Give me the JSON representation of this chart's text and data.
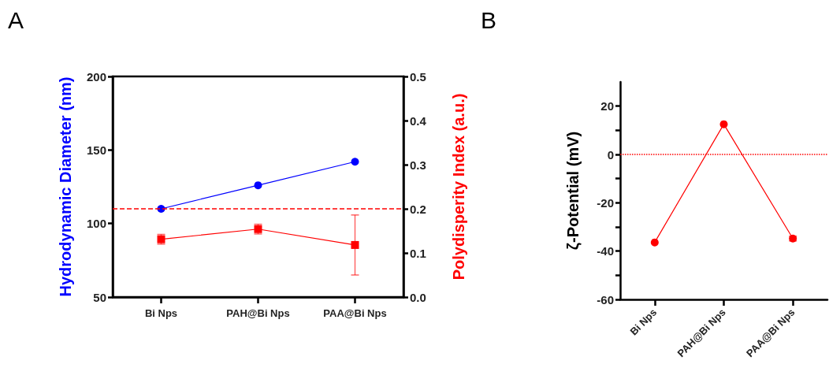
{
  "chart_data": [
    {
      "type": "line",
      "annotations": [
        "A"
      ],
      "ylabel": "Hydrodynamic Diameter (nm)",
      "y2label": "Polydisperity Index (a.u.)",
      "categories": [
        "Bi Nps",
        "PAH@Bi Nps",
        "PAA@Bi Nps"
      ],
      "series": [
        {
          "color": "#0000ff",
          "values": [
            110,
            126,
            142
          ],
          "marker": "circle"
        },
        {
          "color": "#ff0000",
          "values": [
            0.131,
            0.154,
            0.118
          ],
          "errors": [
            0.011,
            0.011,
            0.068
          ],
          "marker": "square",
          "axis": "y2"
        }
      ],
      "ylim": [
        50,
        200
      ],
      "yticks": [
        50,
        100,
        150,
        200
      ],
      "y2lim": [
        0,
        0.5
      ],
      "y2ticks": [
        {
          "value": 0,
          "label": "0.0"
        },
        0.1,
        0.2,
        0.3,
        0.4,
        0.5
      ],
      "ref_lines": [
        {
          "axis": "y2",
          "value": 0.2,
          "label": null,
          "color": "#ff0000",
          "line_style": "dashed"
        }
      ],
      "grid": false
    },
    {
      "type": "line",
      "annotations": [
        "B"
      ],
      "ylabel": "ζ-Potential (mV)",
      "categories": [
        "Bi Nps",
        "PAH@Bi Nps",
        "PAA@Bi Nps"
      ],
      "series": [
        {
          "color": "#ff0000",
          "values": [
            -36.4,
            12.5,
            -34.8
          ],
          "errors": [
            null,
            null,
            1
          ]
        }
      ],
      "marker": "circle",
      "ylim": [
        -60,
        30
      ],
      "yticks": [
        -60,
        {
          "value": -50,
          "label": null
        },
        -40,
        {
          "value": -30,
          "label": null
        },
        -20,
        {
          "value": -10,
          "label": null
        },
        0,
        {
          "value": 10,
          "label": null
        },
        20
      ],
      "ref_lines": [
        {
          "axis": "y",
          "value": 0,
          "label": null,
          "color": "#ff0000",
          "line_style": "dotted"
        }
      ],
      "grid": false
    }
  ]
}
